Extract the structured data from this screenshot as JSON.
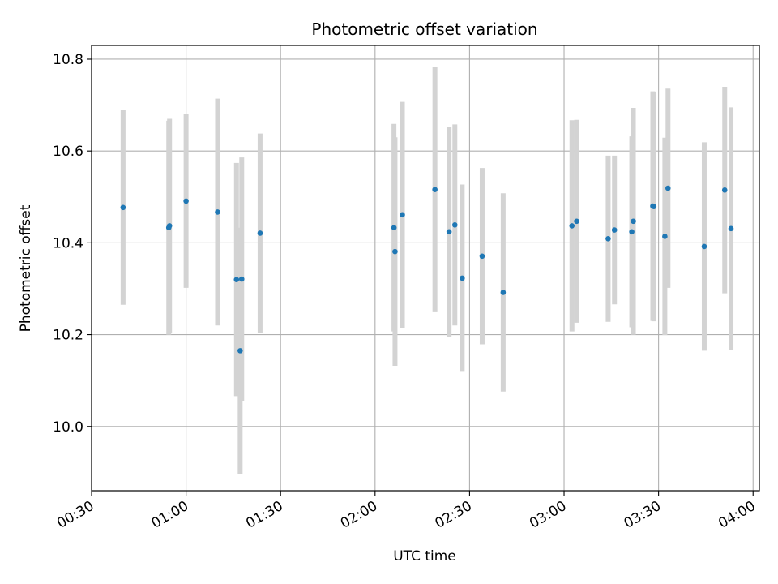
{
  "chart_data": {
    "type": "scatter",
    "title": "Photometric offset variation",
    "xlabel": "UTC time",
    "ylabel": "Photometric offset",
    "x_axis_type": "time",
    "xlim": [
      "00:30",
      "04:02"
    ],
    "ylim": [
      9.86,
      10.83
    ],
    "x_ticks": [
      "00:30",
      "01:00",
      "01:30",
      "02:00",
      "02:30",
      "03:00",
      "03:30",
      "04:00"
    ],
    "y_ticks": [
      10.0,
      10.2,
      10.4,
      10.6,
      10.8
    ],
    "y_tick_labels": [
      "10.0",
      "10.2",
      "10.4",
      "10.6",
      "10.8"
    ],
    "grid": true,
    "legend": "none",
    "point_color": "#1f77b4",
    "errorbar_color": "#d3d3d3",
    "points": [
      {
        "x": "00:40",
        "y": 10.477,
        "err": 0.212
      },
      {
        "x": "00:54:30",
        "y": 10.433,
        "err": 0.233
      },
      {
        "x": "00:54:45",
        "y": 10.437,
        "err": 0.233
      },
      {
        "x": "01:00",
        "y": 10.491,
        "err": 0.189
      },
      {
        "x": "01:10",
        "y": 10.467,
        "err": 0.247
      },
      {
        "x": "01:16",
        "y": 10.32,
        "err": 0.254
      },
      {
        "x": "01:17:10",
        "y": 10.165,
        "err": 0.268
      },
      {
        "x": "01:17:40",
        "y": 10.321,
        "err": 0.265
      },
      {
        "x": "01:23:30",
        "y": 10.421,
        "err": 0.217
      },
      {
        "x": "02:06",
        "y": 10.433,
        "err": 0.226
      },
      {
        "x": "02:06:20",
        "y": 10.381,
        "err": 0.249
      },
      {
        "x": "02:08:40",
        "y": 10.461,
        "err": 0.246
      },
      {
        "x": "02:19",
        "y": 10.516,
        "err": 0.267
      },
      {
        "x": "02:23:30",
        "y": 10.424,
        "err": 0.229
      },
      {
        "x": "02:25:20",
        "y": 10.439,
        "err": 0.219
      },
      {
        "x": "02:27:40",
        "y": 10.323,
        "err": 0.204
      },
      {
        "x": "02:34",
        "y": 10.371,
        "err": 0.192
      },
      {
        "x": "02:40:40",
        "y": 10.292,
        "err": 0.216
      },
      {
        "x": "03:02:30",
        "y": 10.437,
        "err": 0.23
      },
      {
        "x": "03:04",
        "y": 10.447,
        "err": 0.221
      },
      {
        "x": "03:14",
        "y": 10.409,
        "err": 0.181
      },
      {
        "x": "03:16",
        "y": 10.428,
        "err": 0.162
      },
      {
        "x": "03:21:30",
        "y": 10.424,
        "err": 0.208
      },
      {
        "x": "03:22",
        "y": 10.447,
        "err": 0.247
      },
      {
        "x": "03:28:10",
        "y": 10.48,
        "err": 0.25
      },
      {
        "x": "03:28:30",
        "y": 10.479,
        "err": 0.25
      },
      {
        "x": "03:32",
        "y": 10.414,
        "err": 0.215
      },
      {
        "x": "03:33",
        "y": 10.519,
        "err": 0.217
      },
      {
        "x": "03:44:30",
        "y": 10.392,
        "err": 0.227
      },
      {
        "x": "03:51",
        "y": 10.515,
        "err": 0.225
      },
      {
        "x": "03:53",
        "y": 10.431,
        "err": 0.264
      }
    ]
  }
}
